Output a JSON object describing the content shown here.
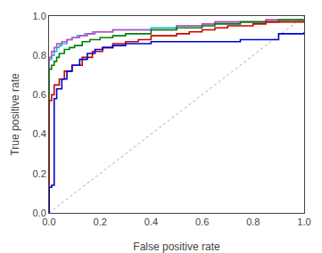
{
  "chart_data": {
    "type": "line",
    "xlabel": "False positive rate",
    "ylabel": "True positive rate",
    "xlim": [
      0.0,
      1.0
    ],
    "ylim": [
      0.0,
      1.0
    ],
    "xticks": [
      {
        "value": 0.0,
        "label": "0.0"
      },
      0.2,
      0.4,
      0.6,
      0.8,
      {
        "value": 1.0,
        "label": "1.0"
      }
    ],
    "yticks": [
      {
        "value": 0.0,
        "label": "0.0"
      },
      0.2,
      0.4,
      0.6,
      0.8,
      {
        "value": 1.0,
        "label": "1.0"
      }
    ],
    "grid": false,
    "series": [
      {
        "color": "#aaaaaa",
        "line_style": "dotted",
        "x": [
          0,
          1
        ],
        "values": [
          0,
          1
        ]
      },
      {
        "color": "#00c8c8",
        "line_style": "steps",
        "x": [
          0.0,
          0.0,
          0.01,
          0.02,
          0.03,
          0.04,
          0.05,
          0.07,
          0.09,
          0.11,
          0.14,
          0.17,
          0.2,
          0.25,
          0.3,
          0.35,
          0.4,
          0.45,
          0.5,
          0.55,
          0.6,
          0.65,
          0.7,
          0.75,
          0.8,
          0.85,
          0.9,
          0.95,
          1.0
        ],
        "values": [
          0.0,
          0.78,
          0.8,
          0.82,
          0.84,
          0.85,
          0.86,
          0.88,
          0.89,
          0.9,
          0.91,
          0.92,
          0.92,
          0.93,
          0.93,
          0.93,
          0.94,
          0.94,
          0.95,
          0.95,
          0.96,
          0.97,
          0.97,
          0.97,
          0.97,
          0.98,
          0.98,
          0.98,
          0.98
        ]
      },
      {
        "color": "#cc44cc",
        "line_style": "steps",
        "x": [
          0.0,
          0.0,
          0.01,
          0.02,
          0.03,
          0.05,
          0.07,
          0.09,
          0.12,
          0.15,
          0.18,
          0.2,
          0.25,
          0.3,
          0.35,
          0.4,
          0.45,
          0.5,
          0.55,
          0.6,
          0.65,
          0.7,
          0.75,
          0.8,
          0.85,
          0.9,
          0.95,
          1.0
        ],
        "values": [
          0.0,
          0.79,
          0.82,
          0.84,
          0.86,
          0.87,
          0.88,
          0.89,
          0.9,
          0.91,
          0.92,
          0.92,
          0.93,
          0.93,
          0.93,
          0.93,
          0.93,
          0.95,
          0.95,
          0.96,
          0.97,
          0.97,
          0.97,
          0.97,
          0.98,
          0.98,
          0.98,
          0.98
        ]
      },
      {
        "color": "#008000",
        "line_style": "steps",
        "x": [
          0.0,
          0.0,
          0.01,
          0.02,
          0.03,
          0.04,
          0.06,
          0.08,
          0.1,
          0.13,
          0.16,
          0.2,
          0.25,
          0.3,
          0.35,
          0.4,
          0.45,
          0.5,
          0.55,
          0.6,
          0.65,
          0.7,
          0.75,
          0.8,
          0.85,
          0.9,
          0.95,
          1.0
        ],
        "values": [
          0.0,
          0.73,
          0.75,
          0.77,
          0.79,
          0.81,
          0.83,
          0.84,
          0.85,
          0.87,
          0.88,
          0.89,
          0.9,
          0.91,
          0.91,
          0.93,
          0.93,
          0.94,
          0.94,
          0.95,
          0.96,
          0.96,
          0.97,
          0.97,
          0.97,
          0.98,
          0.98,
          0.98
        ]
      },
      {
        "color": "#cc0000",
        "line_style": "steps",
        "x": [
          0.0,
          0.0,
          0.01,
          0.02,
          0.04,
          0.06,
          0.09,
          0.13,
          0.17,
          0.21,
          0.25,
          0.3,
          0.35,
          0.4,
          0.45,
          0.5,
          0.55,
          0.6,
          0.65,
          0.7,
          0.75,
          0.8,
          0.85,
          0.9,
          0.95,
          1.0
        ],
        "values": [
          0.0,
          0.57,
          0.6,
          0.65,
          0.68,
          0.72,
          0.75,
          0.79,
          0.82,
          0.84,
          0.86,
          0.87,
          0.88,
          0.9,
          0.9,
          0.91,
          0.92,
          0.93,
          0.94,
          0.95,
          0.95,
          0.96,
          0.97,
          0.97,
          0.97,
          0.97
        ]
      },
      {
        "color": "#0000cc",
        "line_style": "steps",
        "x": [
          0.0,
          0.0,
          0.01,
          0.02,
          0.03,
          0.05,
          0.07,
          0.09,
          0.12,
          0.15,
          0.18,
          0.21,
          0.25,
          0.3,
          0.35,
          0.4,
          0.45,
          0.5,
          0.55,
          0.6,
          0.65,
          0.7,
          0.75,
          0.8,
          0.85,
          0.9,
          0.95,
          1.0
        ],
        "values": [
          0.0,
          0.13,
          0.14,
          0.58,
          0.63,
          0.68,
          0.72,
          0.75,
          0.78,
          0.81,
          0.83,
          0.84,
          0.85,
          0.86,
          0.86,
          0.87,
          0.87,
          0.87,
          0.87,
          0.87,
          0.87,
          0.87,
          0.88,
          0.88,
          0.88,
          0.91,
          0.91,
          0.92
        ]
      }
    ]
  }
}
